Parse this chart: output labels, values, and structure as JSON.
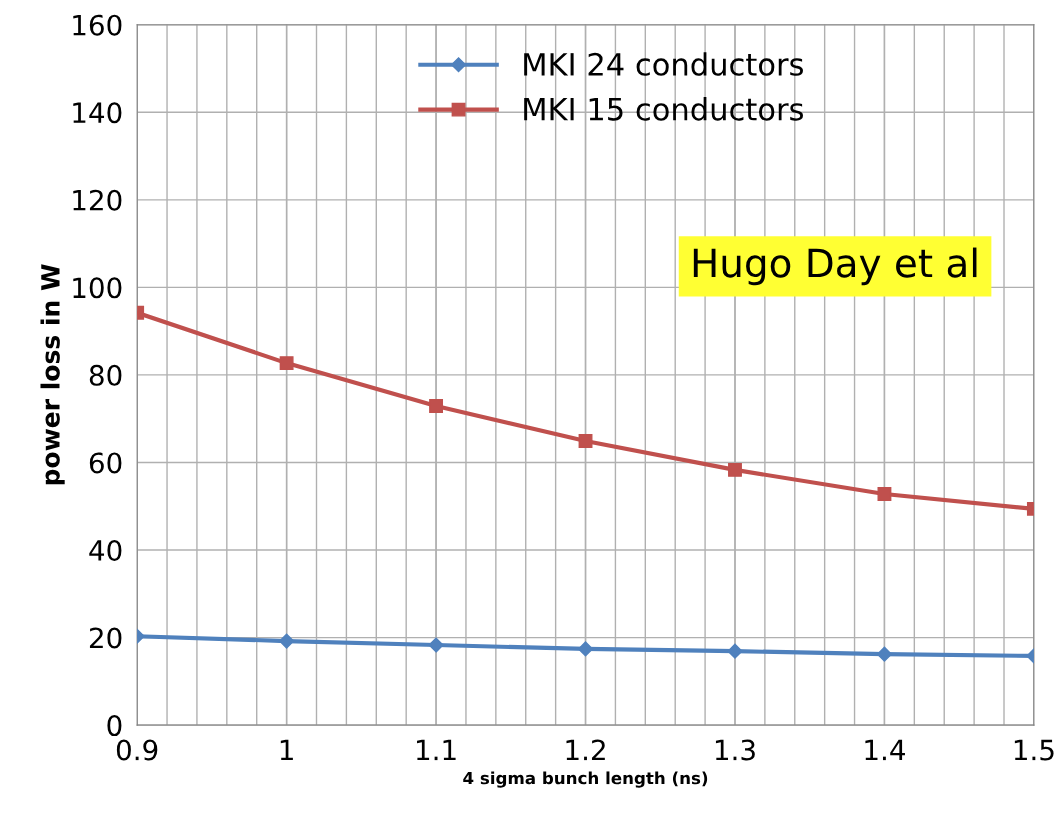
{
  "chart_data": {
    "type": "line",
    "xlabel": "4 sigma bunch length (ns)",
    "ylabel": "power loss in W",
    "x": [
      0.9,
      1.0,
      1.1,
      1.2,
      1.3,
      1.4,
      1.5
    ],
    "series": [
      {
        "name": "MKI 24 conductors",
        "color": "#4f81bd",
        "marker": "diamond",
        "values": [
          20.3,
          19.2,
          18.3,
          17.4,
          16.9,
          16.2,
          15.8
        ]
      },
      {
        "name": "MKI 15 conductors",
        "color": "#c0504d",
        "marker": "square",
        "values": [
          94.2,
          82.7,
          72.9,
          64.9,
          58.3,
          52.8,
          49.4
        ]
      }
    ],
    "xlim": [
      0.9,
      1.5
    ],
    "xticks": [
      0.9,
      1,
      1.1,
      1.2,
      1.3,
      1.4,
      1.5
    ],
    "ylim": [
      0,
      160
    ],
    "yticks": [
      0,
      20,
      40,
      60,
      80,
      100,
      120,
      140,
      160
    ],
    "grid": true,
    "legend": "top",
    "annotations": [
      "Hugo Day et al"
    ]
  }
}
